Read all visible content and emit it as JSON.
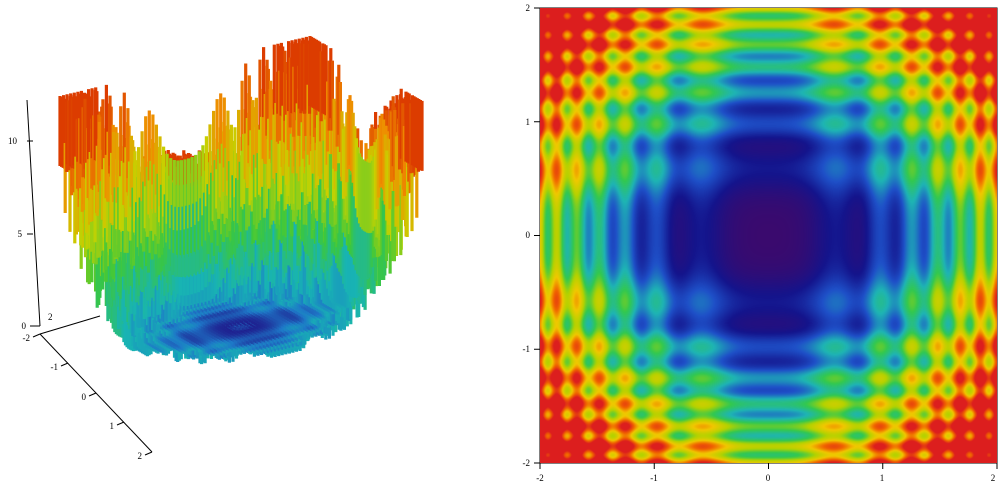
{
  "chart_data": [
    {
      "type": "surface",
      "title": "",
      "axes": {
        "x": {
          "range": [
            -2,
            2
          ],
          "ticks": [
            "-2",
            "-1",
            "0",
            "1",
            "2"
          ]
        },
        "y": {
          "range": [
            -2,
            2
          ],
          "ticks": [
            "-2",
            "2"
          ]
        },
        "z": {
          "range": [
            0,
            12
          ],
          "ticks": [
            "0",
            "5",
            "10"
          ]
        }
      },
      "colormap": [
        "#1f1f8f",
        "#1e78c8",
        "#18b4b4",
        "#3cc83c",
        "#c8d200",
        "#f08c00",
        "#dc3c00"
      ],
      "grid": false
    },
    {
      "type": "heatmap",
      "title": "",
      "xlabel": "",
      "ylabel": "",
      "xlim": [
        -2,
        2
      ],
      "ylim": [
        -2,
        2
      ],
      "xticks": [
        "-2",
        "-1",
        "0",
        "1",
        "2"
      ],
      "yticks": [
        "2",
        "1",
        "0",
        "-1",
        "-2"
      ],
      "colormap": [
        "#3a0a6e",
        "#14148c",
        "#1e50c8",
        "#1eb4b4",
        "#32c850",
        "#b4d200",
        "#f0c800",
        "#f06400",
        "#dc1e1e"
      ],
      "zlim": [
        0,
        10
      ],
      "grid": false
    }
  ]
}
